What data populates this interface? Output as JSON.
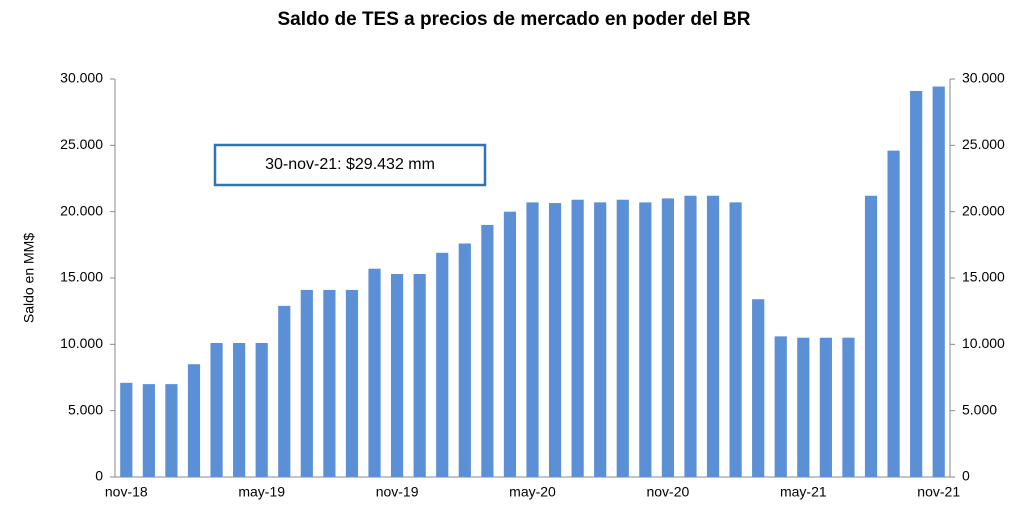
{
  "chart_data": {
    "type": "bar",
    "title": "Saldo de TES a precios de mercado en poder del BR",
    "y_label": "Saldo en MM$",
    "annotation": "30-nov-21:  $29.432  mm",
    "categories": [
      "nov-18",
      null,
      null,
      null,
      null,
      null,
      "may-19",
      null,
      null,
      null,
      null,
      null,
      "nov-19",
      null,
      null,
      null,
      null,
      null,
      "may-20",
      null,
      null,
      null,
      null,
      null,
      "nov-20",
      null,
      null,
      null,
      null,
      null,
      "may-21",
      null,
      null,
      null,
      null,
      null,
      "nov-21"
    ],
    "values": [
      7100,
      7000,
      7000,
      8500,
      10100,
      10100,
      10100,
      12900,
      14100,
      14100,
      14100,
      15700,
      15300,
      15300,
      16900,
      17600,
      19000,
      20000,
      20700,
      20650,
      20900,
      20700,
      20900,
      20700,
      21000,
      21200,
      21200,
      20700,
      13400,
      10600,
      10500,
      10500,
      10500,
      21200,
      24600,
      29100,
      29432
    ],
    "color": "#5b8fd6",
    "ylim": [
      0,
      30000
    ],
    "yticks": [
      0,
      {
        "value": 5000,
        "label": "5.000"
      },
      {
        "value": 10000,
        "label": "10.000"
      },
      {
        "value": 15000,
        "label": "15.000"
      },
      {
        "value": 20000,
        "label": "20.000"
      },
      {
        "value": 25000,
        "label": "25.000"
      },
      {
        "value": 30000,
        "label": "30.000"
      }
    ],
    "y2lim": [
      0,
      30000
    ],
    "y2ticks": [
      0,
      {
        "value": 5000,
        "label": "5.000"
      },
      {
        "value": 10000,
        "label": "10.000"
      },
      {
        "value": 15000,
        "label": "15.000"
      },
      {
        "value": 20000,
        "label": "20.000"
      },
      {
        "value": 25000,
        "label": "25.000"
      },
      {
        "value": 30000,
        "label": "30.000"
      }
    ],
    "grid": false
  }
}
